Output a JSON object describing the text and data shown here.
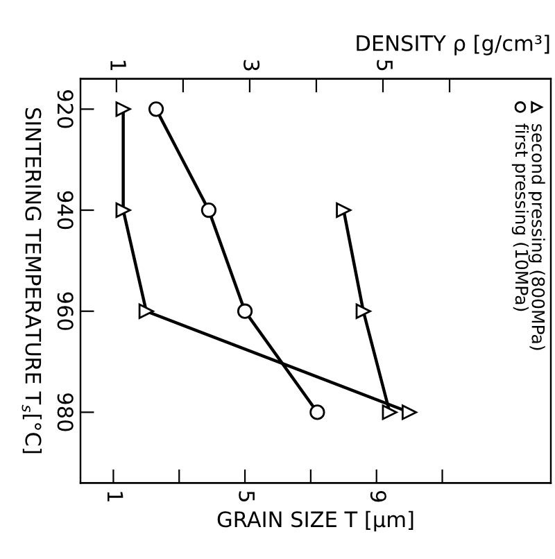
{
  "chart_data": {
    "type": "line",
    "xlabel": "GRAIN SIZE T [μm]",
    "ylabel": "SINTERING TEMPERATURE T$_{s}$[°C]",
    "x2label": "DENSITY ρ [g/cm³]",
    "xlim": [
      0,
      14.3
    ],
    "xticks": [
      1,
      {
        "value": 3,
        "label": null
      },
      5,
      {
        "value": 7,
        "label": null
      },
      9,
      {
        "value": 11,
        "label": null
      }
    ],
    "x2lim": [
      0.46,
      7.52
    ],
    "x2ticks": [
      1,
      {
        "value": 2,
        "label": null
      },
      3,
      {
        "value": 4,
        "label": null
      },
      5,
      {
        "value": 6,
        "label": null
      }
    ],
    "ylim": [
      994,
      914
    ],
    "yticks": [
      920,
      940,
      960,
      980
    ],
    "grid": false,
    "legend": "right",
    "series": [
      {
        "name": "first pressing (10MPa)",
        "color": "#000000",
        "marker": "circle",
        "x": [
          2.3,
          3.9,
          5.0,
          7.2
        ],
        "values": [
          920,
          940,
          960,
          980
        ]
      },
      {
        "name": "second pressing (800MPa)",
        "color": "#000000",
        "marker": "triangle",
        "x": [
          1.3,
          1.3,
          2.0,
          10.0
        ],
        "values": [
          920,
          940,
          960,
          980
        ]
      },
      {
        "color": "#000000",
        "marker": "triangle",
        "x": [
          8.0,
          8.6,
          9.4
        ],
        "values": [
          940,
          960,
          980
        ]
      }
    ]
  }
}
